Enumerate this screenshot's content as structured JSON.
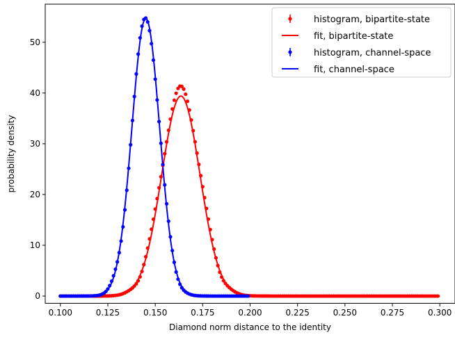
{
  "chart_data": {
    "type": "scatter",
    "xlabel": "Diamond norm distance to the identity",
    "ylabel": "probability density",
    "xlim": [
      0.092,
      0.308
    ],
    "ylim": [
      -1.5,
      57.5
    ],
    "xticks": [
      0.1,
      0.125,
      0.15,
      0.175,
      0.2,
      0.225,
      0.25,
      0.275,
      0.3
    ],
    "xtick_labels": [
      "0.100",
      "0.125",
      "0.150",
      "0.175",
      "0.200",
      "0.225",
      "0.250",
      "0.275",
      "0.300"
    ],
    "yticks": [
      0,
      10,
      20,
      30,
      40,
      50
    ],
    "ytick_labels": [
      "0",
      "10",
      "20",
      "30",
      "40",
      "50"
    ],
    "grid": false,
    "legend_position": "top-right",
    "series": [
      {
        "name": "histogram, bipartite-state",
        "kind": "points",
        "color": "#ff0000",
        "x_range": [
          0.1,
          0.299
        ],
        "bins": 200,
        "peak_x": 0.1625,
        "peak_y": 40.8,
        "model": "gaussian",
        "mean": 0.1635,
        "sd": 0.0101
      },
      {
        "name": "fit, bipartite-state",
        "kind": "line",
        "color": "#ff0000",
        "model": "gaussian",
        "mean": 0.1635,
        "sd": 0.0101,
        "peak_y": 39.4,
        "x_range": [
          0.1,
          0.3
        ]
      },
      {
        "name": "histogram, channel-space",
        "kind": "points",
        "color": "#0000ff",
        "x_range": [
          0.1,
          0.199
        ],
        "bins": 100,
        "peak_x": 0.1445,
        "peak_y": 54.7,
        "model": "gaussian",
        "mean": 0.145,
        "sd": 0.0073
      },
      {
        "name": "fit, channel-space",
        "kind": "line",
        "color": "#0000ff",
        "model": "gaussian",
        "mean": 0.145,
        "sd": 0.0073,
        "peak_y": 54.7,
        "x_range": [
          0.1,
          0.2
        ]
      }
    ]
  }
}
